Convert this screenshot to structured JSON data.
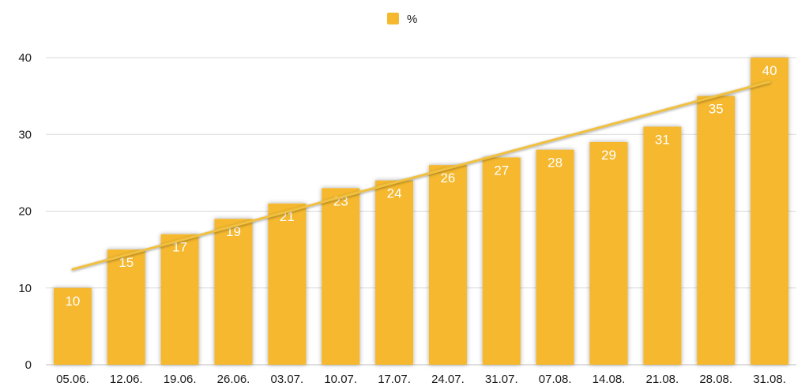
{
  "chart_data": {
    "type": "bar",
    "categories": [
      "05.06.",
      "12.06.",
      "19.06.",
      "26.06.",
      "03.07.",
      "10.07.",
      "17.07.",
      "24.07.",
      "31.07.",
      "07.08.",
      "14.08.",
      "21.08.",
      "28.08.",
      "31.08."
    ],
    "series": [
      {
        "name": "%",
        "values": [
          10,
          15,
          17,
          19,
          21,
          23,
          24,
          26,
          27,
          28,
          29,
          31,
          35,
          40
        ],
        "color": "#F5B82E"
      }
    ],
    "trendline": {
      "type": "linear",
      "color": "#F0C040"
    },
    "ylim": [
      0,
      40
    ],
    "yticks": [
      0,
      10,
      20,
      30,
      40
    ],
    "grid": true,
    "legend": {
      "position": "top-center",
      "label": "%"
    },
    "data_labels": true,
    "xlabel": "",
    "ylabel": ""
  }
}
